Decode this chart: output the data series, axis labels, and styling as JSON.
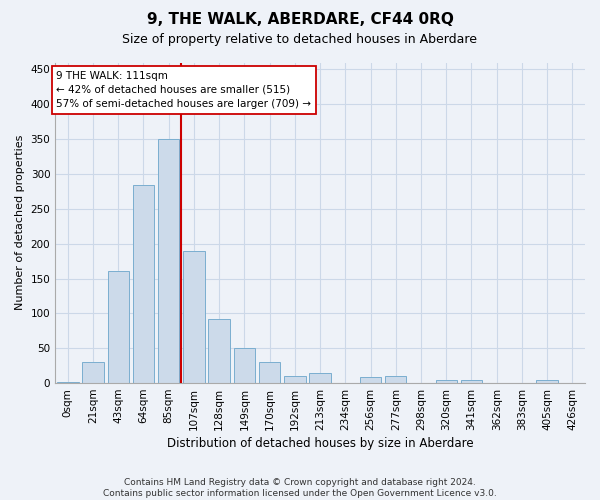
{
  "title": "9, THE WALK, ABERDARE, CF44 0RQ",
  "subtitle": "Size of property relative to detached houses in Aberdare",
  "xlabel": "Distribution of detached houses by size in Aberdare",
  "ylabel": "Number of detached properties",
  "footer_line1": "Contains HM Land Registry data © Crown copyright and database right 2024.",
  "footer_line2": "Contains public sector information licensed under the Open Government Licence v3.0.",
  "bar_labels": [
    "0sqm",
    "21sqm",
    "43sqm",
    "64sqm",
    "85sqm",
    "107sqm",
    "128sqm",
    "149sqm",
    "170sqm",
    "192sqm",
    "213sqm",
    "234sqm",
    "256sqm",
    "277sqm",
    "298sqm",
    "320sqm",
    "341sqm",
    "362sqm",
    "383sqm",
    "405sqm",
    "426sqm"
  ],
  "bar_values": [
    2,
    30,
    161,
    284,
    350,
    190,
    92,
    50,
    30,
    10,
    15,
    0,
    8,
    10,
    0,
    4,
    5,
    0,
    0,
    5,
    0
  ],
  "bar_color": "#ccdaea",
  "bar_edge_color": "#7aaed0",
  "vline_color": "#cc0000",
  "annotation_line1": "9 THE WALK: 111sqm",
  "annotation_line2": "← 42% of detached houses are smaller (515)",
  "annotation_line3": "57% of semi-detached houses are larger (709) →",
  "annotation_box_facecolor": "#ffffff",
  "annotation_box_edgecolor": "#cc0000",
  "ylim": [
    0,
    460
  ],
  "yticks": [
    0,
    50,
    100,
    150,
    200,
    250,
    300,
    350,
    400,
    450
  ],
  "grid_color": "#ccd8e8",
  "background_color": "#eef2f8",
  "vline_bin_index": 5,
  "title_fontsize": 11,
  "subtitle_fontsize": 9,
  "ylabel_fontsize": 8,
  "xlabel_fontsize": 8.5,
  "tick_fontsize": 7.5,
  "footer_fontsize": 6.5
}
